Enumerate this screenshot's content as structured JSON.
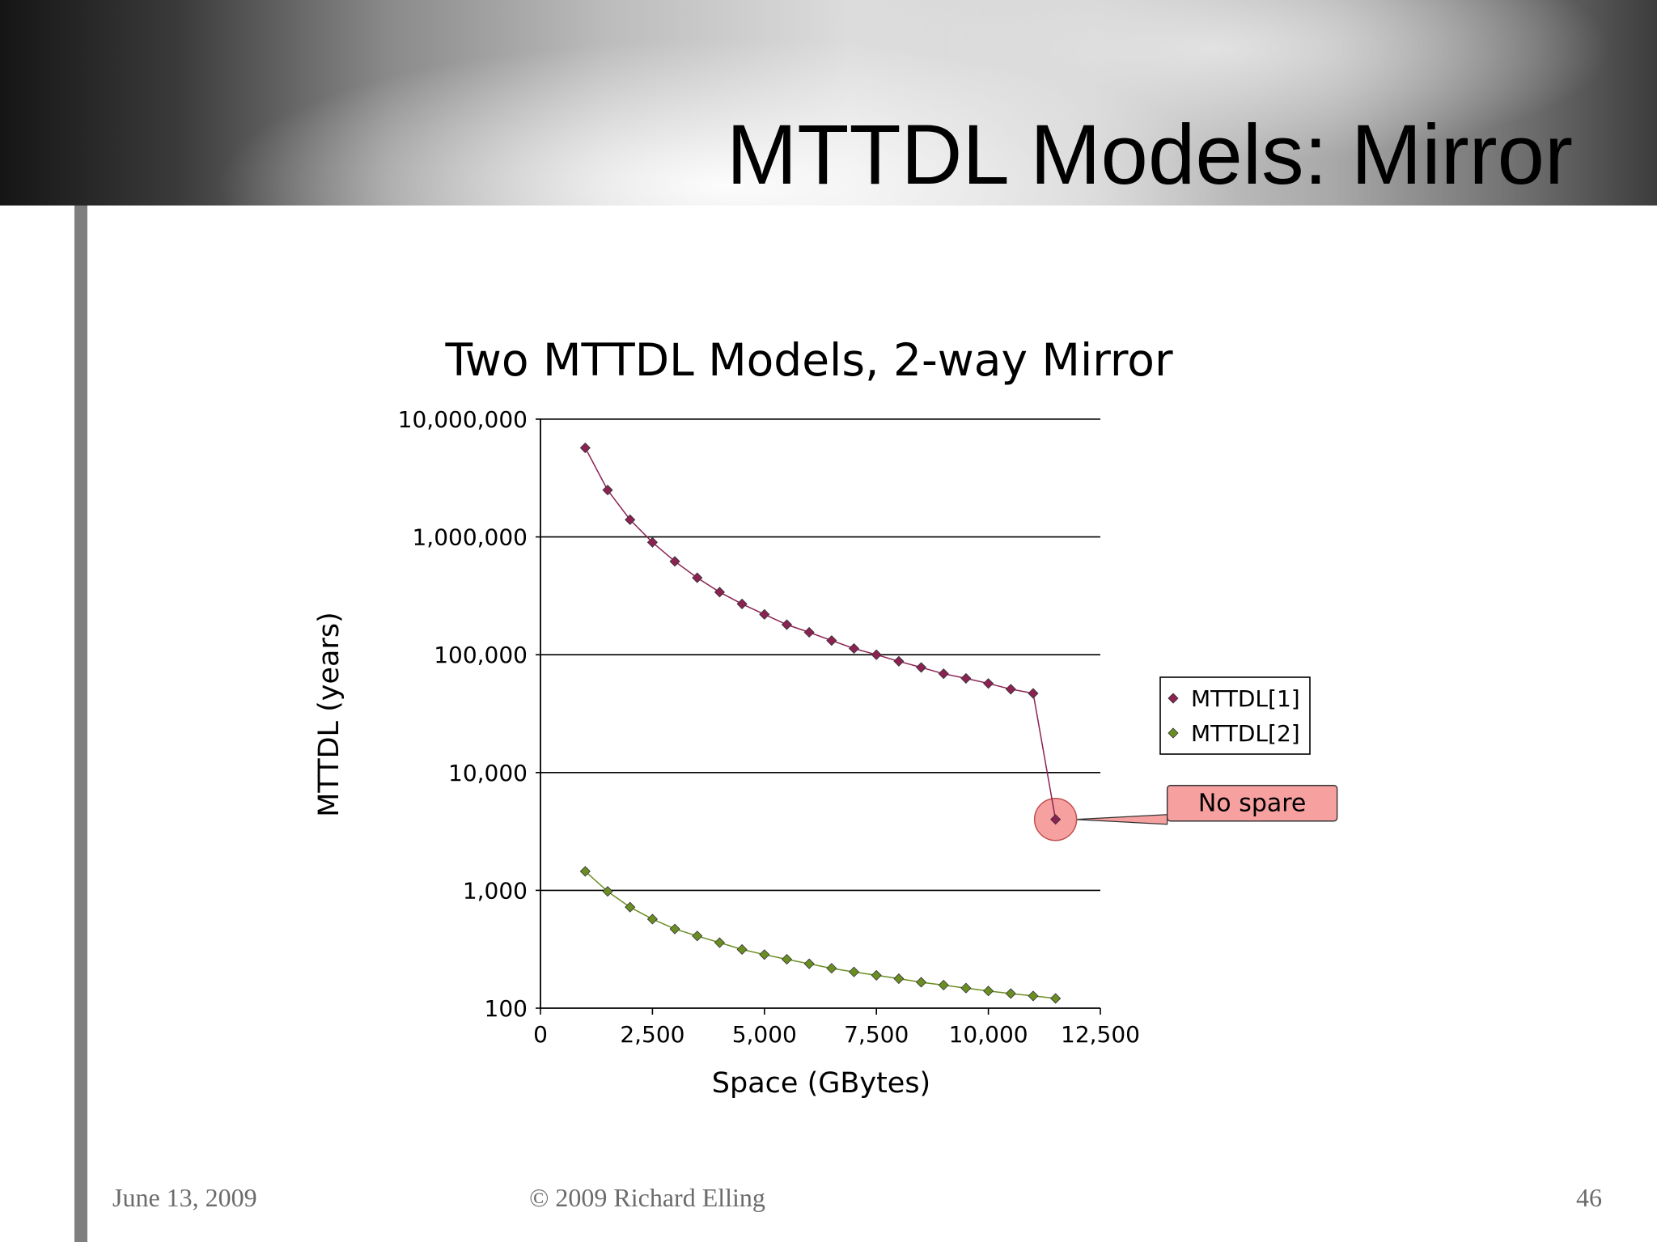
{
  "slide": {
    "title": "MTTDL Models: Mirror",
    "footer_date": "June 13, 2009",
    "footer_copyright": "© 2009 Richard Elling",
    "page_number": "46"
  },
  "chart_data": {
    "type": "line",
    "title": "Two MTTDL Models, 2-way Mirror",
    "xlabel": "Space (GBytes)",
    "ylabel": "MTTDL (years)",
    "y_scale": "log",
    "xlim": [
      0,
      12500
    ],
    "ylim": [
      100,
      10000000
    ],
    "x_ticks": [
      0,
      2500,
      5000,
      7500,
      10000,
      12500
    ],
    "x_tick_labels": [
      "0",
      "2,500",
      "5,000",
      "7,500",
      "10,000",
      "12,500"
    ],
    "y_ticks": [
      100,
      1000,
      10000,
      100000,
      1000000,
      10000000
    ],
    "y_tick_labels": [
      "100",
      "1,000",
      "10,000",
      "100,000",
      "1,000,000",
      "10,000,000"
    ],
    "grid": true,
    "legend_position": "right",
    "series": [
      {
        "name": "MTTDL[1]",
        "color": "#8b2252",
        "x": [
          1000,
          1500,
          2000,
          2500,
          3000,
          3500,
          4000,
          4500,
          5000,
          5500,
          6000,
          6500,
          7000,
          7500,
          8000,
          8500,
          9000,
          9500,
          10000,
          10500,
          11000,
          11500
        ],
        "values": [
          5700000,
          2500000,
          1400000,
          900000,
          620000,
          450000,
          340000,
          270000,
          220000,
          180000,
          155000,
          132000,
          113000,
          100000,
          88000,
          78000,
          69000,
          63000,
          57000,
          51000,
          47000,
          4000
        ]
      },
      {
        "name": "MTTDL[2]",
        "color": "#6b8e23",
        "x": [
          1000,
          1500,
          2000,
          2500,
          3000,
          3500,
          4000,
          4500,
          5000,
          5500,
          6000,
          6500,
          7000,
          7500,
          8000,
          8500,
          9000,
          9500,
          10000,
          10500,
          11000,
          11500
        ],
        "values": [
          1450,
          980,
          720,
          570,
          470,
          410,
          360,
          315,
          285,
          260,
          238,
          218,
          203,
          190,
          178,
          166,
          157,
          148,
          140,
          133,
          127,
          121
        ]
      }
    ],
    "annotations": [
      {
        "text": "No spare",
        "x": 11500,
        "y": 4000,
        "series": "MTTDL[1]",
        "fill": "#f7a0a0"
      }
    ]
  }
}
